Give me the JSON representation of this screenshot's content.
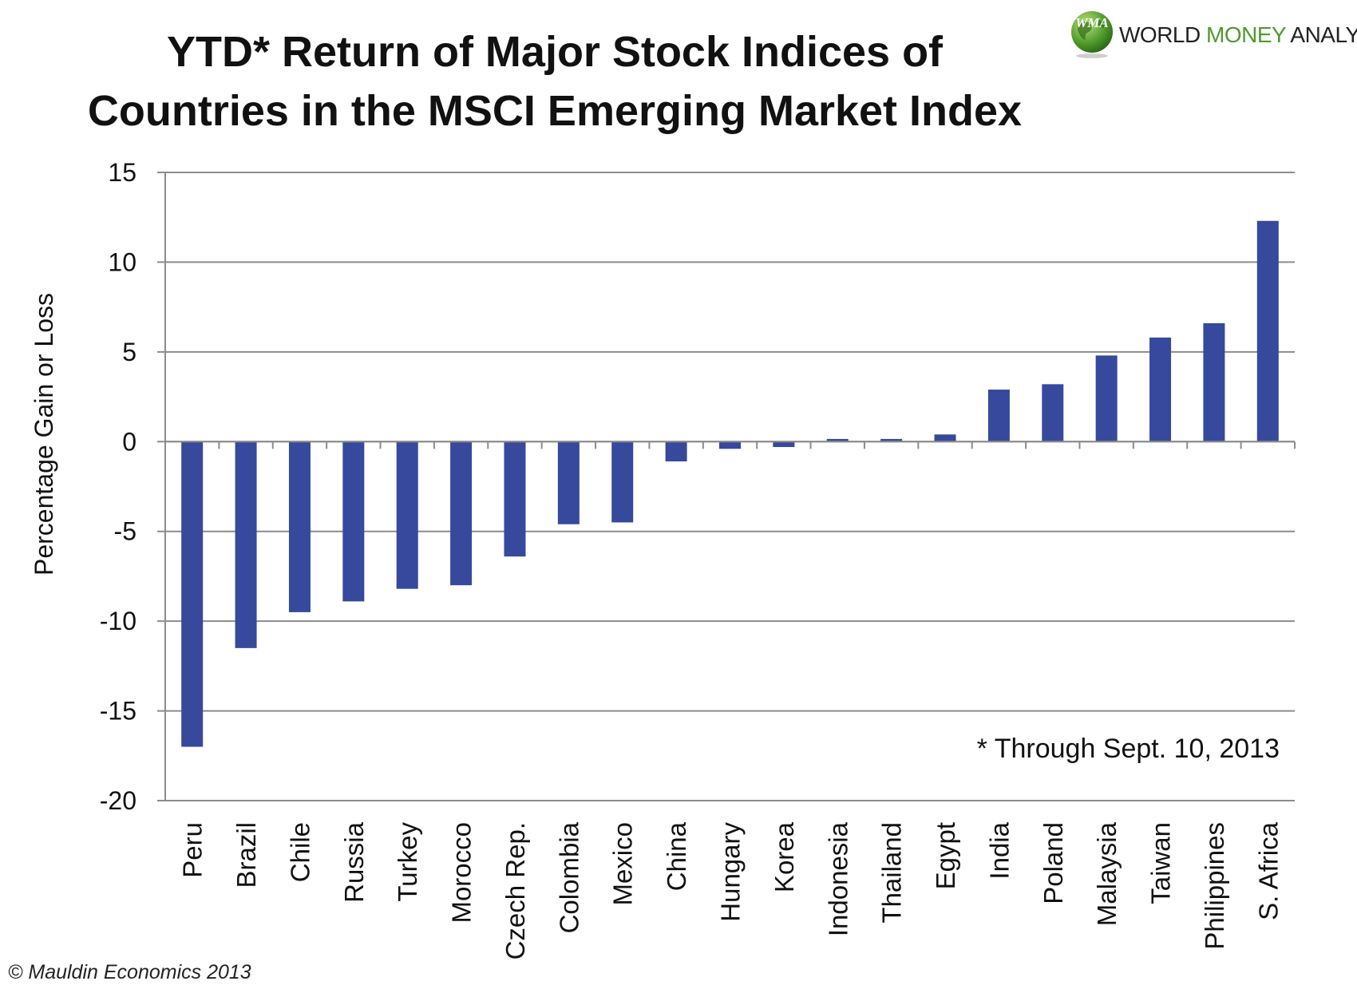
{
  "title_lines": [
    "YTD* Return of Major Stock Indices of",
    "Countries in the MSCI Emerging Market Index"
  ],
  "logo": {
    "badge": "WMA",
    "text_part1": "WORLD ",
    "text_part2": "MONEY",
    "text_part3": " ANALYST",
    "accent": "#4f9a2c"
  },
  "footer": "© Mauldin Economics 2013",
  "chart_data": {
    "type": "bar",
    "title": "YTD* Return of Major Stock Indices of Countries in the MSCI Emerging Market Index",
    "ylabel": "Percentage Gain or Loss",
    "xlabel": "",
    "ylim": [
      -20,
      15
    ],
    "yticks": [
      15,
      10,
      5,
      0,
      -5,
      -10,
      -15,
      -20
    ],
    "grid": true,
    "bar_color": "#36499c",
    "annotation": "* Through Sept. 10, 2013",
    "categories": [
      "Peru",
      "Brazil",
      "Chile",
      "Russia",
      "Turkey",
      "Morocco",
      "Czech Rep.",
      "Colombia",
      "Mexico",
      "China",
      "Hungary",
      "Korea",
      "Indonesia",
      "Thailand",
      "Egypt",
      "India",
      "Poland",
      "Malaysia",
      "Taiwan",
      "Philippines",
      "S. Africa"
    ],
    "values": [
      -17.0,
      -11.5,
      -9.5,
      -8.9,
      -8.2,
      -8.0,
      -6.4,
      -4.6,
      -4.5,
      -1.1,
      -0.4,
      -0.3,
      0.15,
      0.15,
      0.4,
      2.9,
      3.2,
      4.8,
      5.8,
      6.6,
      12.3
    ]
  }
}
